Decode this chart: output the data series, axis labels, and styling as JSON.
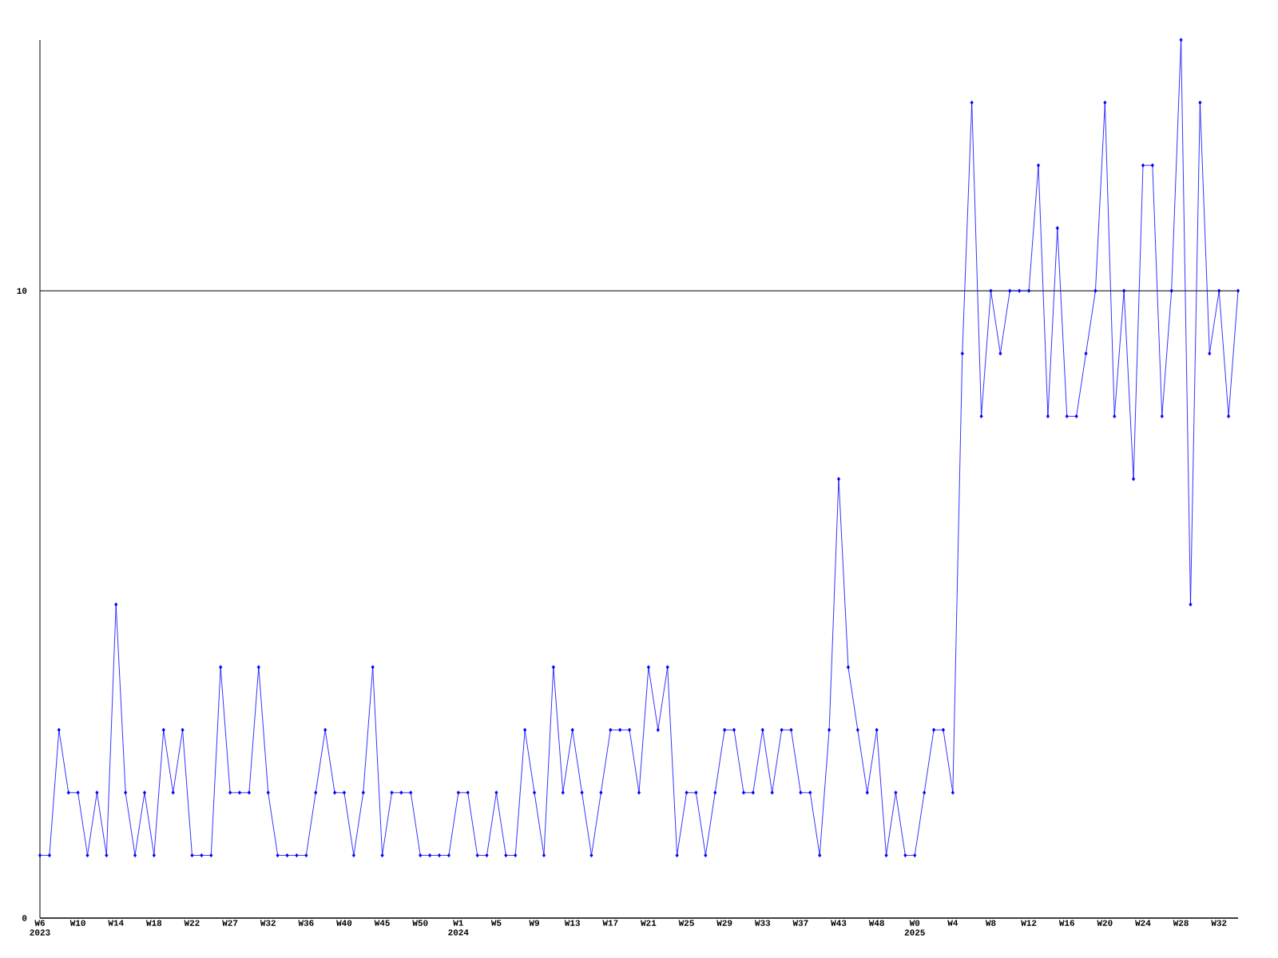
{
  "chart_data": {
    "type": "line",
    "categories": [
      "W6 2023",
      null,
      null,
      null,
      "W10",
      null,
      null,
      null,
      "W14",
      null,
      null,
      null,
      "W18",
      null,
      null,
      null,
      "W22",
      null,
      null,
      null,
      "W27",
      null,
      null,
      null,
      "W32",
      null,
      null,
      null,
      "W36",
      null,
      null,
      null,
      "W40",
      null,
      null,
      null,
      "W45",
      null,
      null,
      null,
      "W50",
      null,
      null,
      null,
      "W1 2024",
      null,
      null,
      null,
      "W5",
      null,
      null,
      null,
      "W9",
      null,
      null,
      null,
      "W13",
      null,
      null,
      null,
      "W17",
      null,
      null,
      null,
      "W21",
      null,
      null,
      null,
      "W25",
      null,
      null,
      null,
      "W29",
      null,
      null,
      null,
      "W33",
      null,
      null,
      null,
      "W37",
      null,
      null,
      null,
      "W43",
      null,
      null,
      null,
      "W48",
      null,
      null,
      null,
      "W0 2025",
      null,
      null,
      null,
      "W4",
      null,
      null,
      null,
      "W8",
      null,
      null,
      null,
      "W12",
      null,
      null,
      null,
      "W16",
      null,
      null,
      null,
      "W20",
      null,
      null,
      null,
      "W24",
      null,
      null,
      null,
      "W28",
      null,
      null,
      null,
      "W32",
      null,
      null
    ],
    "values": [
      1,
      1,
      3,
      2,
      2,
      1,
      2,
      1,
      5,
      2,
      1,
      2,
      1,
      3,
      2,
      3,
      1,
      1,
      1,
      4,
      2,
      2,
      2,
      4,
      2,
      1,
      1,
      1,
      1,
      2,
      3,
      2,
      2,
      1,
      2,
      4,
      1,
      2,
      2,
      2,
      1,
      1,
      1,
      1,
      2,
      2,
      1,
      1,
      2,
      1,
      1,
      3,
      2,
      1,
      4,
      2,
      3,
      2,
      1,
      2,
      3,
      3,
      3,
      2,
      4,
      3,
      4,
      1,
      2,
      2,
      1,
      2,
      3,
      3,
      2,
      2,
      3,
      2,
      3,
      3,
      2,
      2,
      1,
      3,
      7,
      4,
      3,
      2,
      3,
      1,
      2,
      1,
      1,
      2,
      3,
      3,
      2,
      9,
      13,
      8,
      10,
      9,
      10,
      10,
      10,
      12,
      8,
      11,
      8,
      8,
      9,
      10,
      13,
      8,
      10,
      7,
      12,
      12,
      8,
      10,
      14,
      5,
      13,
      9,
      10,
      8,
      10
    ],
    "color": "#0000ff",
    "ylim": [
      0,
      14
    ],
    "yticks": [
      0,
      10
    ],
    "grid": "y",
    "marker": "diamond"
  }
}
